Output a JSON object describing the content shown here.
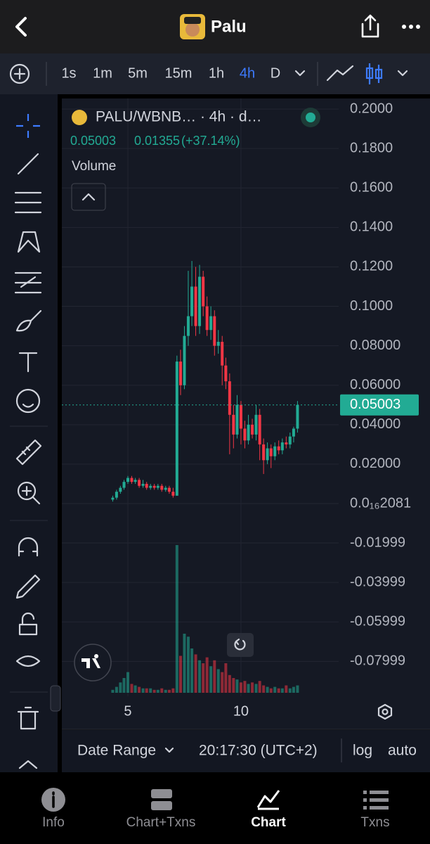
{
  "header": {
    "title": "Palu"
  },
  "toolbar": {
    "intervals": [
      "1s",
      "1m",
      "5m",
      "15m",
      "1h",
      "4h",
      "D"
    ],
    "active_interval": 5
  },
  "chart_data": {
    "type": "candlestick",
    "title": "PALU/WBNB… · 4h · d…",
    "last_price": 0.05003,
    "change": 0.01355,
    "change_label": "(+37.14%)",
    "volume_label": "Volume",
    "up_color": "#22ab94",
    "down_color": "#f23645",
    "x": [
      4.33,
      4.5,
      4.67,
      4.83,
      5,
      5.17,
      5.33,
      5.5,
      5.67,
      5.83,
      6,
      6.17,
      6.33,
      6.5,
      6.67,
      6.83,
      7,
      7.17,
      7.33,
      7.5,
      7.67,
      7.83,
      8,
      8.17,
      8.33,
      8.5,
      8.67,
      8.83,
      9,
      9.17,
      9.33,
      9.5,
      9.67,
      9.83,
      10,
      10.17,
      10.33,
      10.5,
      10.67,
      10.83,
      11,
      11.17,
      11.33,
      11.5,
      11.67,
      11.83,
      12,
      12.17,
      12.33,
      12.5
    ],
    "open": [
      0.002,
      0.003,
      0.006,
      0.008,
      0.011,
      0.013,
      0.011,
      0.012,
      0.009,
      0.01,
      0.008,
      0.009,
      0.008,
      0.009,
      0.007,
      0.008,
      0.006,
      0.004,
      0.072,
      0.06,
      0.085,
      0.095,
      0.11,
      0.09,
      0.115,
      0.1,
      0.088,
      0.095,
      0.08,
      0.082,
      0.07,
      0.062,
      0.045,
      0.035,
      0.05,
      0.038,
      0.032,
      0.04,
      0.035,
      0.045,
      0.03,
      0.022,
      0.028,
      0.024,
      0.029,
      0.027,
      0.031,
      0.03,
      0.034,
      0.038
    ],
    "high": [
      0.004,
      0.007,
      0.009,
      0.012,
      0.014,
      0.014,
      0.013,
      0.013,
      0.012,
      0.011,
      0.01,
      0.01,
      0.01,
      0.01,
      0.009,
      0.009,
      0.008,
      0.075,
      0.078,
      0.09,
      0.118,
      0.123,
      0.12,
      0.121,
      0.118,
      0.105,
      0.1,
      0.098,
      0.088,
      0.085,
      0.074,
      0.066,
      0.05,
      0.055,
      0.052,
      0.042,
      0.045,
      0.043,
      0.05,
      0.048,
      0.033,
      0.031,
      0.03,
      0.031,
      0.032,
      0.033,
      0.034,
      0.036,
      0.039,
      0.052
    ],
    "low": [
      0.001,
      0.002,
      0.005,
      0.007,
      0.01,
      0.01,
      0.01,
      0.008,
      0.008,
      0.007,
      0.007,
      0.007,
      0.007,
      0.006,
      0.006,
      0.005,
      0.003,
      0.004,
      0.055,
      0.058,
      0.08,
      0.09,
      0.085,
      0.086,
      0.095,
      0.085,
      0.083,
      0.075,
      0.076,
      0.06,
      0.058,
      0.025,
      0.028,
      0.033,
      0.03,
      0.028,
      0.03,
      0.033,
      0.032,
      0.022,
      0.015,
      0.02,
      0.018,
      0.022,
      0.025,
      0.025,
      0.028,
      0.028,
      0.031,
      0.036
    ],
    "close": [
      0.003,
      0.006,
      0.008,
      0.011,
      0.013,
      0.011,
      0.012,
      0.009,
      0.01,
      0.008,
      0.009,
      0.008,
      0.009,
      0.007,
      0.008,
      0.006,
      0.004,
      0.072,
      0.06,
      0.085,
      0.095,
      0.11,
      0.09,
      0.115,
      0.1,
      0.088,
      0.095,
      0.08,
      0.082,
      0.07,
      0.062,
      0.045,
      0.035,
      0.05,
      0.038,
      0.032,
      0.04,
      0.035,
      0.045,
      0.03,
      0.022,
      0.028,
      0.024,
      0.029,
      0.027,
      0.031,
      0.03,
      0.034,
      0.038,
      0.05003
    ],
    "volume": [
      2,
      4,
      7,
      10,
      14,
      6,
      5,
      4,
      3,
      3,
      3,
      2,
      2,
      3,
      2,
      2,
      3,
      100,
      25,
      40,
      38,
      30,
      26,
      22,
      20,
      24,
      18,
      22,
      16,
      14,
      20,
      12,
      10,
      9,
      7,
      8,
      6,
      7,
      6,
      8,
      5,
      4,
      3,
      4,
      3,
      3,
      5,
      3,
      4,
      5
    ],
    "xlim": [
      2.08,
      14.32
    ],
    "xticks": [
      5,
      10
    ],
    "ylim": [
      -0.0977,
      0.2036
    ],
    "yticks": [
      {
        "value": 0.2,
        "label": "0.2000"
      },
      {
        "value": 0.18,
        "label": "0.1800"
      },
      {
        "value": 0.16,
        "label": "0.1600"
      },
      {
        "value": 0.14,
        "label": "0.1400"
      },
      {
        "value": 0.12,
        "label": "0.1200"
      },
      {
        "value": 0.1,
        "label": "0.1000"
      },
      {
        "value": 0.08,
        "label": "0.08000"
      },
      {
        "value": 0.06,
        "label": "0.06000"
      },
      {
        "value": 0.04,
        "label": "0.04000"
      },
      {
        "value": 0.02,
        "label": "0.02000"
      },
      {
        "value": 2.081e-17,
        "label": "0.0₁₆2081"
      },
      -0.01999,
      -0.03999,
      -0.05999,
      -0.07999
    ],
    "grid": true
  },
  "footer": {
    "date_range": "Date Range",
    "time": "20:17:30 (UTC+2)",
    "log": "log",
    "auto": "auto"
  },
  "tabs": [
    "Info",
    "Chart+Txns",
    "Chart",
    "Txns"
  ],
  "active_tab": 2
}
